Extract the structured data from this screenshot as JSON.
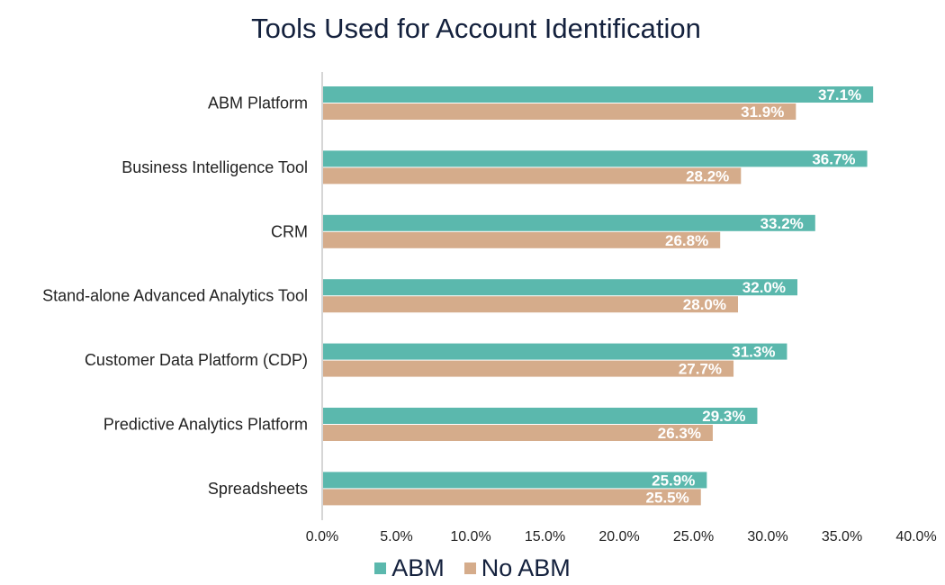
{
  "colors": {
    "abm": "#5bb8ad",
    "no_abm": "#d5ac8b",
    "axis": "#c8c8c8"
  },
  "chart_data": {
    "type": "bar",
    "orientation": "horizontal",
    "title": "Tools Used for Account Identification",
    "categories": [
      "ABM Platform",
      "Business Intelligence Tool",
      "CRM",
      "Stand-alone Advanced Analytics Tool",
      "Customer Data Platform (CDP)",
      "Predictive Analytics Platform",
      "Spreadsheets"
    ],
    "series": [
      {
        "name": "ABM",
        "values": [
          37.1,
          36.7,
          33.2,
          32.0,
          31.3,
          29.3,
          25.9
        ]
      },
      {
        "name": "No ABM",
        "values": [
          31.9,
          28.2,
          26.8,
          28.0,
          27.7,
          26.3,
          25.5
        ]
      }
    ],
    "xlim": [
      0,
      40
    ],
    "xticks": [
      "0.0%",
      "5.0%",
      "10.0%",
      "15.0%",
      "20.0%",
      "25.0%",
      "30.0%",
      "35.0%",
      "40.0%"
    ],
    "data_labels": [
      [
        "37.1%",
        "36.7%",
        "33.2%",
        "32.0%",
        "31.3%",
        "29.3%",
        "25.9%"
      ],
      [
        "31.9%",
        "28.2%",
        "26.8%",
        "28.0%",
        "27.7%",
        "26.3%",
        "25.5%"
      ]
    ],
    "legend_position": "bottom",
    "grid": false
  }
}
